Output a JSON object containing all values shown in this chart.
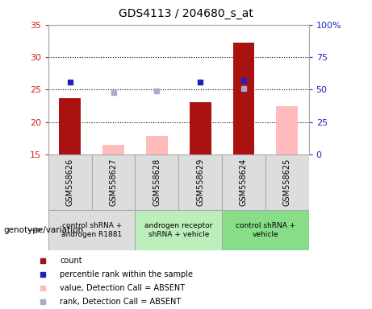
{
  "title": "GDS4113 / 204680_s_at",
  "samples": [
    "GSM558626",
    "GSM558627",
    "GSM558628",
    "GSM558629",
    "GSM558624",
    "GSM558625"
  ],
  "ylim_left": [
    15,
    35
  ],
  "ylim_right": [
    0,
    100
  ],
  "yticks_left": [
    15,
    20,
    25,
    30,
    35
  ],
  "yticks_right": [
    0,
    25,
    50,
    75,
    100
  ],
  "ytick_labels_right": [
    "0",
    "25",
    "50",
    "75",
    "100%"
  ],
  "count_values": [
    23.7,
    null,
    null,
    23.0,
    32.2,
    null
  ],
  "absent_value_values": [
    null,
    16.5,
    17.8,
    null,
    null,
    22.5
  ],
  "absent_rank_scatter": [
    null,
    24.5,
    24.8,
    null,
    25.2,
    null
  ],
  "percentile_values": [
    26.1,
    null,
    null,
    26.1,
    26.4,
    null
  ],
  "group_colors": [
    "#dddddd",
    "#bbeebb",
    "#88dd88"
  ],
  "group_labels": [
    "control shRNA +\nandrogen R1881",
    "androgen receptor\nshRNA + vehicle",
    "control shRNA +\nvehicle"
  ],
  "group_sample_ranges": [
    [
      0,
      1
    ],
    [
      2,
      3
    ],
    [
      4,
      5
    ]
  ],
  "bar_width": 0.5,
  "count_color": "#aa1111",
  "absent_value_color": "#ffbbbb",
  "absent_rank_color": "#aaaacc",
  "percentile_color": "#2222bb",
  "grid_lines": [
    20,
    25,
    30
  ],
  "genotype_label": "genotype/variation",
  "legend_colors": [
    "#aa1111",
    "#2222bb",
    "#ffbbbb",
    "#aaaacc"
  ],
  "legend_labels": [
    "count",
    "percentile rank within the sample",
    "value, Detection Call = ABSENT",
    "rank, Detection Call = ABSENT"
  ]
}
